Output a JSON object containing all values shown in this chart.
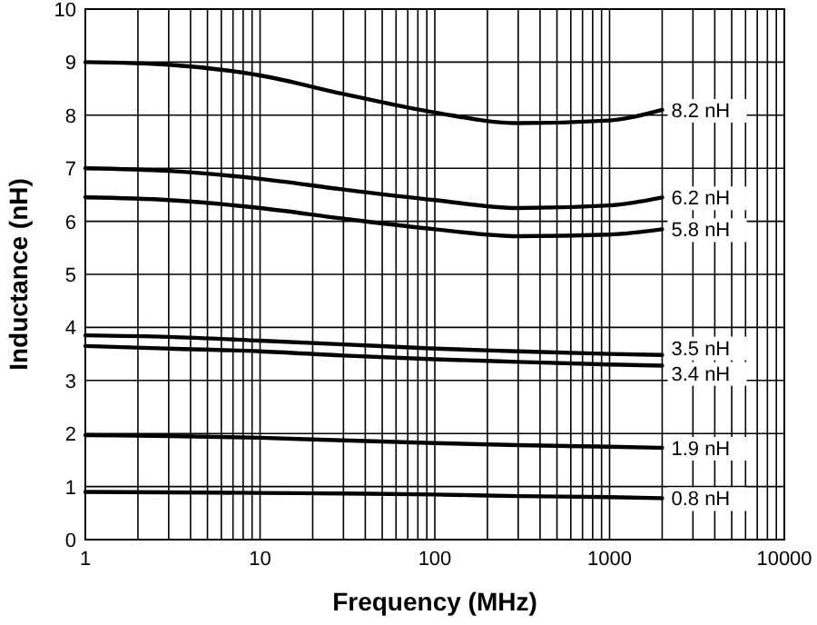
{
  "chart_data": {
    "type": "line",
    "xlabel": "Frequency (MHz)",
    "ylabel": "Inductance (nH)",
    "log": "x",
    "grid": true,
    "marker": "none",
    "line_style": "solid",
    "xlim": [
      1,
      10000
    ],
    "ylim": [
      0,
      10
    ],
    "xticks": [
      1,
      {
        "value": 2,
        "label": null
      },
      {
        "value": 3,
        "label": null
      },
      {
        "value": 4,
        "label": null
      },
      {
        "value": 5,
        "label": null
      },
      {
        "value": 6,
        "label": null
      },
      {
        "value": 7,
        "label": null
      },
      {
        "value": 8,
        "label": null
      },
      {
        "value": 9,
        "label": null
      },
      10,
      {
        "value": 20,
        "label": null
      },
      {
        "value": 30,
        "label": null
      },
      {
        "value": 40,
        "label": null
      },
      {
        "value": 50,
        "label": null
      },
      {
        "value": 60,
        "label": null
      },
      {
        "value": 70,
        "label": null
      },
      {
        "value": 80,
        "label": null
      },
      {
        "value": 90,
        "label": null
      },
      100,
      {
        "value": 200,
        "label": null
      },
      {
        "value": 300,
        "label": null
      },
      {
        "value": 400,
        "label": null
      },
      {
        "value": 500,
        "label": null
      },
      {
        "value": 600,
        "label": null
      },
      {
        "value": 700,
        "label": null
      },
      {
        "value": 800,
        "label": null
      },
      {
        "value": 900,
        "label": null
      },
      1000,
      {
        "value": 2000,
        "label": null
      },
      {
        "value": 3000,
        "label": null
      },
      {
        "value": 4000,
        "label": null
      },
      {
        "value": 5000,
        "label": null
      },
      {
        "value": 6000,
        "label": null
      },
      {
        "value": 7000,
        "label": null
      },
      {
        "value": 8000,
        "label": null
      },
      {
        "value": 9000,
        "label": null
      },
      10000
    ],
    "yticks": [
      0,
      1,
      2,
      3,
      4,
      5,
      6,
      7,
      8,
      9,
      10
    ],
    "x": [
      1,
      3,
      10,
      30,
      100,
      300,
      1000,
      2000
    ],
    "series": [
      {
        "name": "8.2 nH",
        "color": "#000000",
        "values": [
          9.0,
          8.95,
          8.75,
          8.4,
          8.05,
          7.85,
          7.9,
          8.1
        ]
      },
      {
        "name": "6.2 nH",
        "color": "#000000",
        "values": [
          7.0,
          6.95,
          6.8,
          6.6,
          6.4,
          6.25,
          6.3,
          6.45
        ]
      },
      {
        "name": "5.8 nH",
        "color": "#000000",
        "values": [
          6.45,
          6.4,
          6.25,
          6.05,
          5.85,
          5.72,
          5.75,
          5.85
        ]
      },
      {
        "name": "3.5 nH",
        "color": "#000000",
        "values": [
          3.85,
          3.82,
          3.75,
          3.68,
          3.6,
          3.55,
          3.5,
          3.48
        ]
      },
      {
        "name": "3.4 nH",
        "color": "#000000",
        "values": [
          3.65,
          3.6,
          3.55,
          3.47,
          3.4,
          3.35,
          3.3,
          3.28
        ]
      },
      {
        "name": "1.9 nH",
        "color": "#000000",
        "values": [
          1.97,
          1.95,
          1.92,
          1.87,
          1.82,
          1.78,
          1.75,
          1.73
        ]
      },
      {
        "name": "0.8 nH",
        "color": "#000000",
        "values": [
          0.9,
          0.89,
          0.88,
          0.87,
          0.85,
          0.82,
          0.8,
          0.78
        ]
      }
    ]
  }
}
